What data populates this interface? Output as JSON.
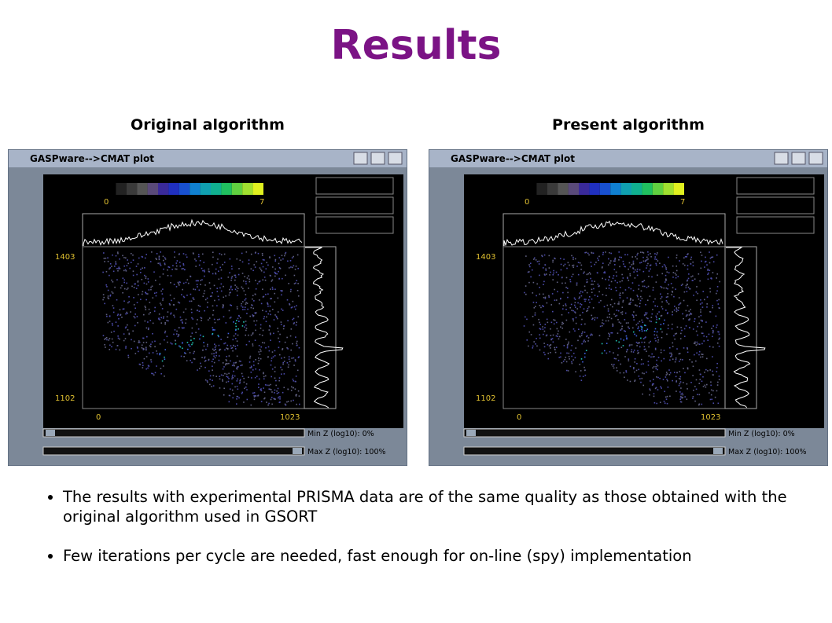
{
  "title": "Results",
  "panels": [
    {
      "caption": "Original algorithm",
      "window_title": "GASPware-->CMAT plot",
      "scale_min": "0",
      "scale_max": "7",
      "y_top": "1403",
      "y_bottom": "1102",
      "x_left": "0",
      "x_right": "1023",
      "min_z": "Min Z (log10): 0%",
      "max_z": "Max Z (log10): 100%"
    },
    {
      "caption": "Present algorithm",
      "window_title": "GASPware-->CMAT plot",
      "scale_min": "0",
      "scale_max": "7",
      "y_top": "1403",
      "y_bottom": "1102",
      "x_left": "0",
      "x_right": "1023",
      "min_z": "Min Z (log10): 0%",
      "max_z": "Max Z (log10): 100%"
    }
  ],
  "bullets": [
    "The results with experimental PRISMA data are of the same quality as those obtained with the original algorithm used in GSORT",
    "Few iterations per cycle are needed, fast enough for on-line (spy) implementation"
  ]
}
